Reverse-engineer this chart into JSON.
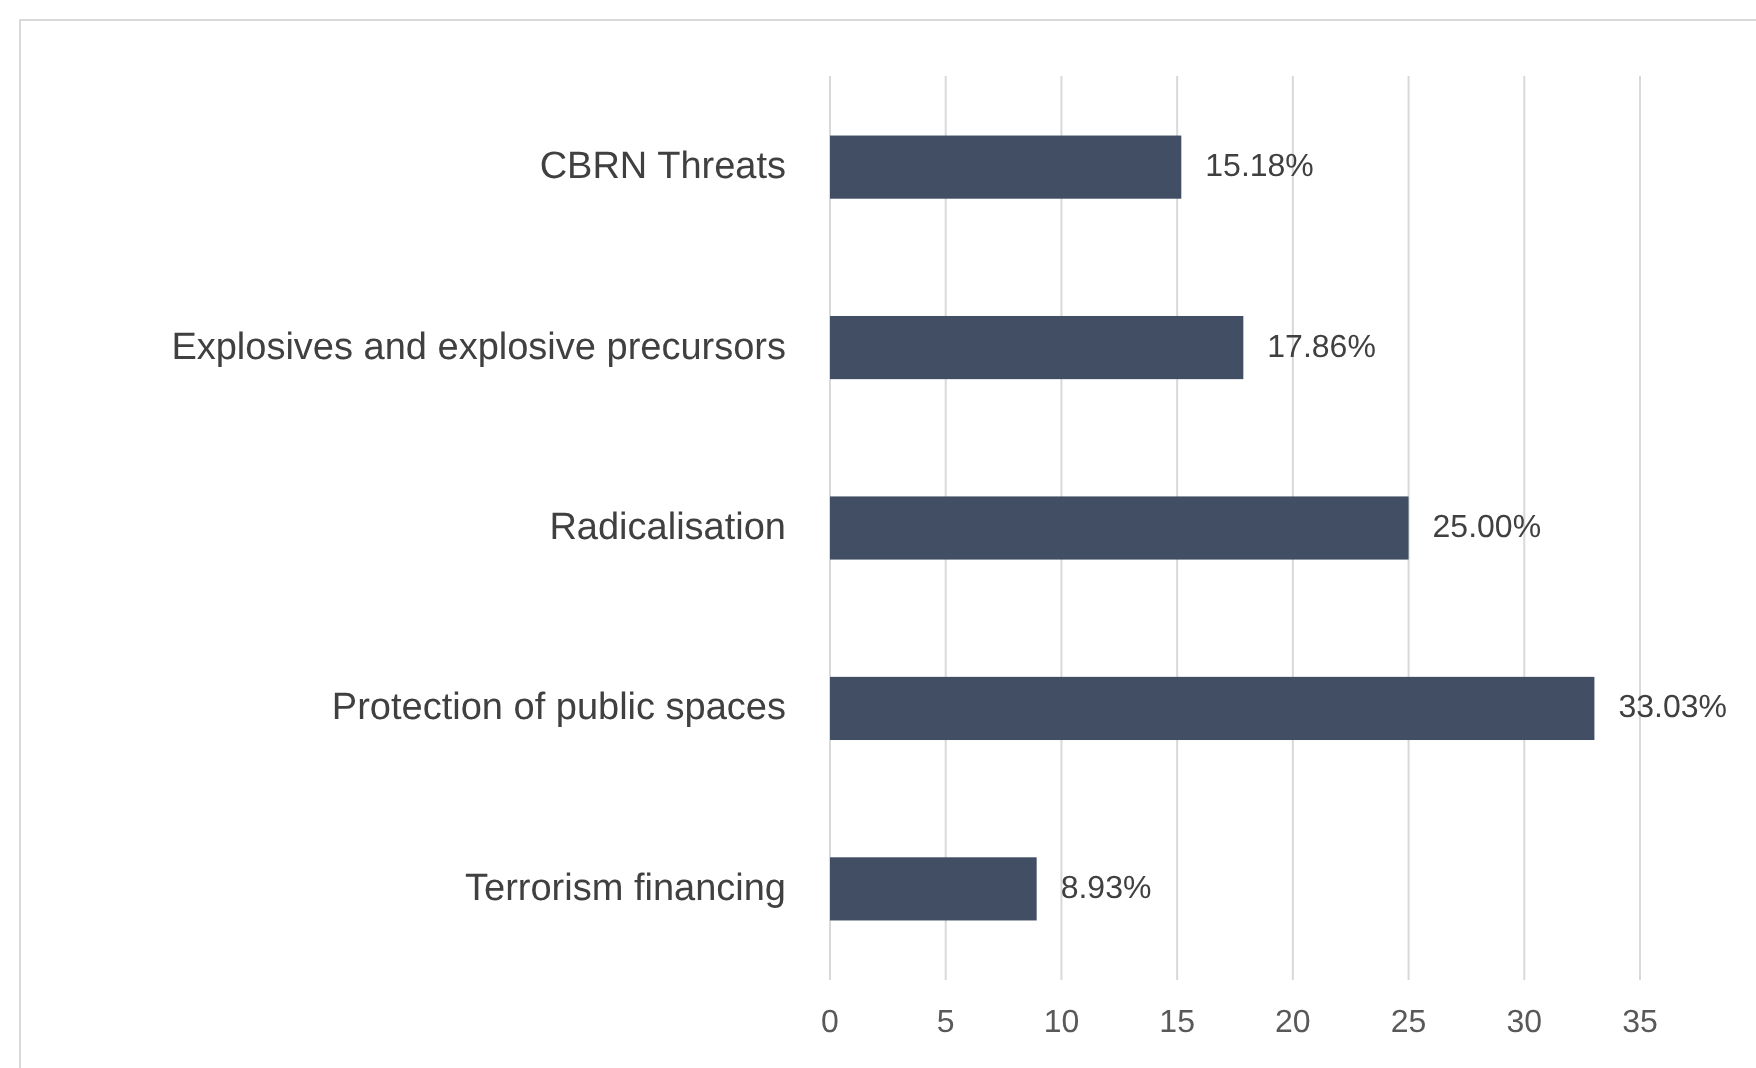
{
  "chart_data": {
    "type": "bar",
    "orientation": "horizontal",
    "categories": [
      "CBRN Threats",
      "Explosives and explosive precursors",
      "Radicalisation",
      "Protection of public spaces",
      "Terrorism financing"
    ],
    "values": [
      15.18,
      17.86,
      25.0,
      33.03,
      8.93
    ],
    "value_labels": [
      "15.18%",
      "17.86%",
      "25.00%",
      "33.03%",
      "8.93%"
    ],
    "color": "#414e63",
    "xlim": [
      0,
      35
    ],
    "xticks": [
      0,
      5,
      10,
      15,
      20,
      25,
      30,
      35
    ],
    "grid": "x"
  }
}
